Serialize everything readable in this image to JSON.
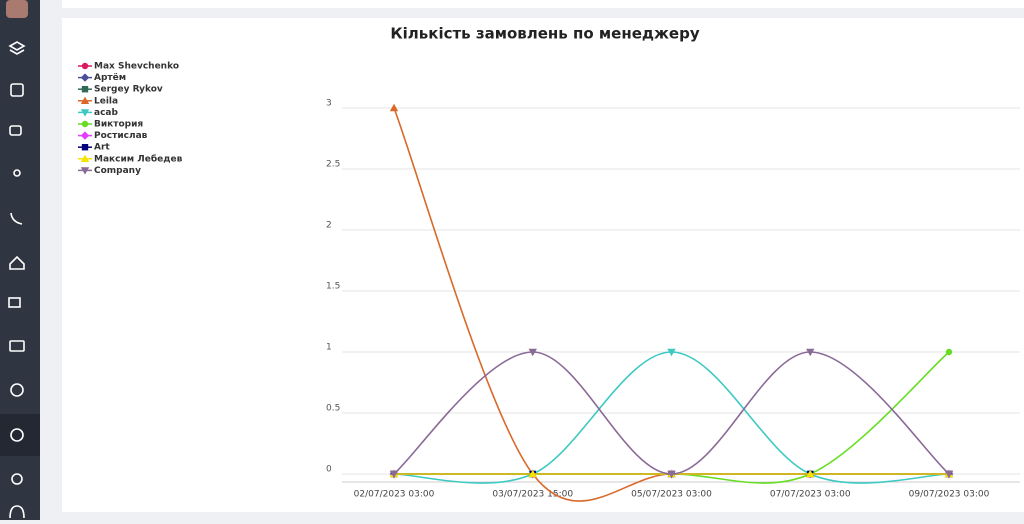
{
  "chart_data": {
    "type": "line",
    "title": "Кількість замовлень по менеджеру",
    "categories": [
      "02/07/2023 03:00",
      "03/07/2023 15:00",
      "05/07/2023 03:00",
      "07/07/2023 03:00",
      "09/07/2023 03:00"
    ],
    "series": [
      {
        "name": "Max Shevchenko",
        "color": "#d81b60",
        "values": [
          0,
          0,
          0,
          0,
          0
        ]
      },
      {
        "name": "Артём",
        "color": "#4a4f9a",
        "values": [
          0,
          0,
          0,
          0,
          0
        ]
      },
      {
        "name": "Sergey Rykov",
        "color": "#2e6b55",
        "values": [
          0,
          0,
          0,
          0,
          0
        ]
      },
      {
        "name": "Leila",
        "color": "#d9692a",
        "values": [
          3,
          0,
          0,
          0,
          0
        ]
      },
      {
        "name": "acab",
        "color": "#3fc9c3",
        "values": [
          0,
          0,
          1,
          0,
          0
        ]
      },
      {
        "name": "Виктория",
        "color": "#66dd22",
        "values": [
          0,
          0,
          0,
          0,
          1
        ]
      },
      {
        "name": "Ростислав",
        "color": "#e040fb",
        "values": [
          0,
          0,
          0,
          0,
          0
        ]
      },
      {
        "name": "Art",
        "color": "#00007a",
        "values": [
          0,
          0,
          0,
          0,
          0
        ]
      },
      {
        "name": "Максим Лебедев",
        "color": "#f5e400",
        "values": [
          0,
          0,
          0,
          0,
          0
        ]
      },
      {
        "name": "Company",
        "color": "#8a6a96",
        "values": [
          0,
          1,
          0,
          1,
          0
        ]
      }
    ],
    "ylim": [
      0,
      3
    ],
    "yticks": [
      0,
      0.5,
      1,
      1.5,
      2,
      2.5,
      3
    ],
    "grid": true
  }
}
